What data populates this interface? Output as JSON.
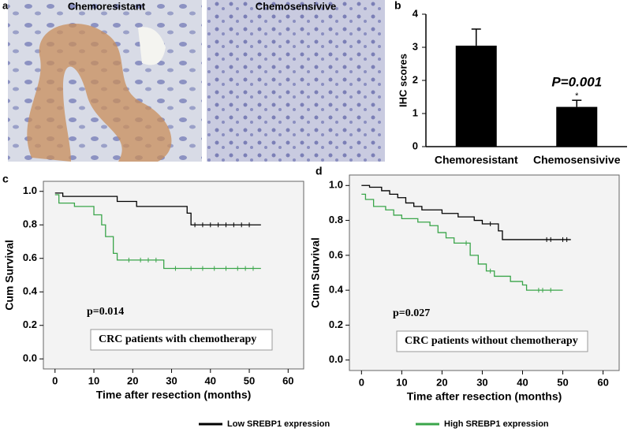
{
  "panel_a": {
    "label": "a",
    "images": [
      "Chemoresistant",
      "Chemosensivive"
    ]
  },
  "legend": [
    {
      "name": "Low SREBP1 expression",
      "color": "#000000"
    },
    {
      "name": "High SREBP1 expression",
      "color": "#3aa54a"
    }
  ],
  "chart_data": [
    {
      "type": "bar",
      "panel": "b",
      "y_label": "IHC scores",
      "categories": [
        "Chemoresistant",
        "Chemosensivive"
      ],
      "values": [
        3.05,
        1.2
      ],
      "errors": [
        0.5,
        0.2
      ],
      "color": "#000000",
      "ylim": [
        0,
        4
      ],
      "yticks": [
        0,
        1,
        2,
        3,
        4
      ],
      "annotations": [
        "P=0.001",
        "*"
      ]
    },
    {
      "type": "line",
      "panel": "c",
      "x_label": "Time after resection (months)",
      "y_label": "Cum Survival",
      "xlim": [
        -3,
        64
      ],
      "ylim": [
        -0.06,
        1.06
      ],
      "xticks": [
        0,
        10,
        20,
        30,
        40,
        50,
        60
      ],
      "yticks": [
        {
          "value": 0,
          "label": "0.0"
        },
        0.2,
        0.4,
        0.6,
        0.8,
        {
          "value": 1,
          "label": "1.0"
        }
      ],
      "annotations": [
        "p=0.014",
        "CRC patients with chemotherapy"
      ],
      "series": [
        {
          "color": "#000000",
          "x": [
            0,
            2,
            16,
            21,
            34,
            35,
            53
          ],
          "values": [
            0.99,
            0.97,
            0.94,
            0.91,
            0.87,
            0.8,
            0.8
          ],
          "censored": [
            36,
            38,
            40,
            42,
            44,
            46,
            48,
            50
          ]
        },
        {
          "color": "#3aa54a",
          "x": [
            0,
            1,
            5,
            10,
            12,
            13,
            15,
            16,
            28,
            53
          ],
          "values": [
            0.98,
            0.93,
            0.91,
            0.86,
            0.8,
            0.73,
            0.63,
            0.59,
            0.54,
            0.54
          ],
          "censored": [
            19,
            22,
            24,
            26,
            31,
            35,
            38,
            41,
            44,
            47,
            49,
            51
          ]
        }
      ]
    },
    {
      "type": "line",
      "panel": "d",
      "x_label": "Time after resection (months)",
      "y_label": "Cum Survival",
      "xlim": [
        -3,
        64
      ],
      "ylim": [
        -0.06,
        1.06
      ],
      "xticks": [
        0,
        10,
        20,
        30,
        40,
        50,
        60
      ],
      "yticks": [
        {
          "value": 0,
          "label": "0.0"
        },
        0.2,
        0.4,
        0.6,
        0.8,
        {
          "value": 1,
          "label": "1.0"
        }
      ],
      "annotations": [
        "p=0.027",
        "CRC patients without chemotherapy"
      ],
      "series": [
        {
          "color": "#000000",
          "x": [
            0,
            2,
            5,
            7,
            9,
            11,
            13,
            15,
            20,
            24,
            28,
            30,
            34,
            35,
            52
          ],
          "values": [
            1.0,
            0.99,
            0.97,
            0.95,
            0.93,
            0.9,
            0.88,
            0.86,
            0.84,
            0.82,
            0.8,
            0.78,
            0.74,
            0.69,
            0.69
          ],
          "censored": [
            32,
            46,
            47,
            50,
            51
          ]
        },
        {
          "color": "#3aa54a",
          "x": [
            0,
            1,
            3,
            6,
            8,
            10,
            14,
            17,
            19,
            21,
            23,
            27,
            29,
            31,
            33,
            37,
            40,
            41,
            50
          ],
          "values": [
            0.95,
            0.92,
            0.88,
            0.86,
            0.83,
            0.81,
            0.79,
            0.77,
            0.73,
            0.7,
            0.67,
            0.6,
            0.55,
            0.51,
            0.48,
            0.45,
            0.43,
            0.4,
            0.4
          ],
          "censored": [
            26,
            32,
            44,
            45,
            47
          ]
        }
      ]
    }
  ]
}
